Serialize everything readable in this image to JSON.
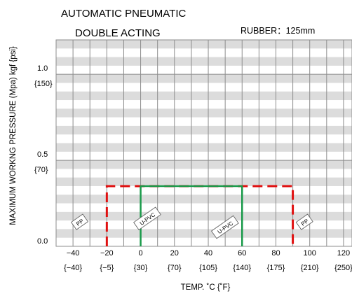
{
  "chart_data": {
    "type": "line",
    "title_lines": [
      "AUTOMATIC  PNEUMATIC",
      "DOUBLE ACTING"
    ],
    "material_label": "RUBBER：125mm",
    "xlabel": "TEMP. ˚C {˚F}",
    "ylabel": "MAXIMUM WORKNG PRESSURE (Mpa) kgf {psi}",
    "xlim": [
      -50,
      125
    ],
    "ylim": [
      0,
      1.2
    ],
    "x_ticks_c": [
      "−40",
      "−20",
      "0",
      "20",
      "40",
      "60",
      "80",
      "100",
      "120"
    ],
    "x_ticks_f": [
      "{−40}",
      "{−5}",
      "{30}",
      "{70}",
      "{105}",
      "{140}",
      "{175}",
      "{210}",
      "{250}"
    ],
    "y_ticks_mpa": [
      {
        "value": 1.0,
        "label": "1.0"
      },
      {
        "value": 0.5,
        "label": "0.5"
      },
      {
        "value": 0.0,
        "label": "0.0"
      }
    ],
    "y_ticks_psi": [
      {
        "label": "{150}"
      },
      {
        "label": "{70}"
      }
    ],
    "grid": true,
    "series": [
      {
        "name": "PP",
        "color": "#e01010",
        "dash": true,
        "x": [
          -20,
          -20,
          90,
          90
        ],
        "y": [
          0,
          0.35,
          0.35,
          0
        ],
        "labels": [
          {
            "text": "PP",
            "x": -36,
            "y": 0.14
          },
          {
            "text": "PP",
            "x": 97,
            "y": 0.14
          }
        ]
      },
      {
        "name": "U-PVC",
        "color": "#1a9a4a",
        "dash": false,
        "x": [
          0,
          0,
          60,
          60
        ],
        "y": [
          0,
          0.35,
          0.35,
          0
        ],
        "labels": [
          {
            "text": "U-PVC",
            "x": 4,
            "y": 0.16
          },
          {
            "text": "U-PVC",
            "x": 50,
            "y": 0.11
          }
        ]
      }
    ]
  }
}
